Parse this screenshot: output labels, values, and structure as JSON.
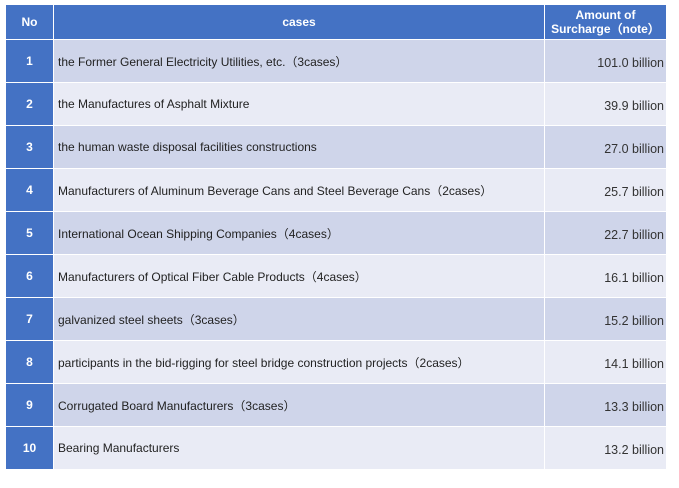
{
  "header": {
    "no": "No",
    "cases": "cases",
    "amount_line1": "Amount of",
    "amount_line2": "Surcharge（note）"
  },
  "rows": [
    {
      "no": "1",
      "case": "the Former General Electricity Utilities, etc.（3cases）",
      "amount": "101.0 billion"
    },
    {
      "no": "2",
      "case": "the Manufactures of Asphalt Mixture",
      "amount": "39.9 billion"
    },
    {
      "no": "3",
      "case": "the human waste disposal facilities constructions",
      "amount": "27.0 billion"
    },
    {
      "no": "4",
      "case": "Manufacturers of Aluminum Beverage Cans and Steel Beverage Cans（2cases）",
      "amount": "25.7 billion"
    },
    {
      "no": "5",
      "case": "International Ocean Shipping Companies（4cases）",
      "amount": "22.7 billion"
    },
    {
      "no": "6",
      "case": "Manufacturers of Optical Fiber Cable Products（4cases）",
      "amount": "16.1 billion"
    },
    {
      "no": "7",
      "case": "galvanized steel sheets（3cases）",
      "amount": "15.2 billion"
    },
    {
      "no": "8",
      "case": "participants in the bid-rigging for steel bridge construction projects（2cases）",
      "amount": "14.1 billion"
    },
    {
      "no": "9",
      "case": "Corrugated Board Manufacturers（3cases）",
      "amount": "13.3 billion"
    },
    {
      "no": "10",
      "case": "Bearing Manufacturers",
      "amount": "13.2 billion"
    }
  ],
  "colors": {
    "header_bg": "#4472c4",
    "row_odd_bg": "#cfd5ea",
    "row_even_bg": "#e9ebf5"
  }
}
